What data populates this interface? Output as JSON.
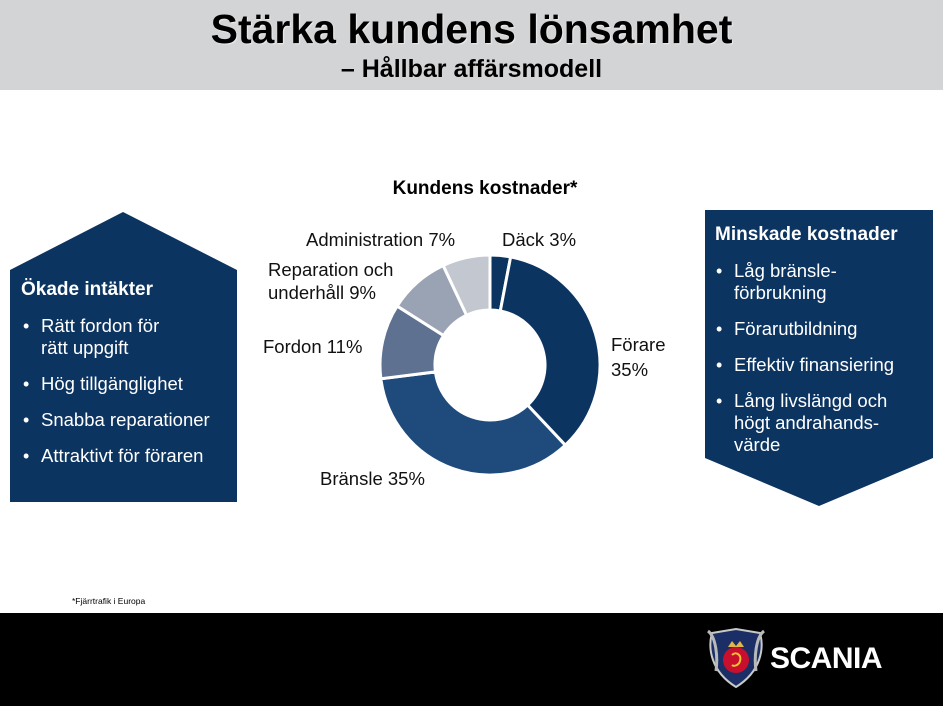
{
  "header": {
    "title": "Stärka kundens lönsamhet",
    "subtitle": "– Hållbar affärsmodell"
  },
  "chart_data": {
    "type": "pie",
    "style": "donut",
    "title": "Kundens kostnader*",
    "slices": [
      {
        "label": "Däck 3%",
        "value": 3,
        "color": "#0c3461"
      },
      {
        "label": "Förare 35%",
        "value": 35,
        "color": "#0c3461"
      },
      {
        "label": "Bränsle 35%",
        "value": 35,
        "color": "#1e4b7c"
      },
      {
        "label": "Fordon 11%",
        "value": 11,
        "color": "#5f7190"
      },
      {
        "label": "Reparation och underhåll 9%",
        "value": 9,
        "color": "#9aa3b4"
      },
      {
        "label": "Administration 7%",
        "value": 7,
        "color": "#c3c7cf"
      }
    ]
  },
  "labels": {
    "dack": "Däck 3%",
    "forare_1": "Förare",
    "forare_2": "35%",
    "bransle": "Bränsle 35%",
    "fordon": "Fordon 11%",
    "reparation_1": "Reparation och",
    "reparation_2": "underhåll 9%",
    "administration": "Administration 7%"
  },
  "left_box": {
    "heading": "Ökade intäkter",
    "items": [
      {
        "line1": "Rätt fordon för",
        "line2": "rätt uppgift"
      },
      {
        "line1": "Hög tillgänglighet",
        "line2": ""
      },
      {
        "line1": "Snabba reparationer",
        "line2": ""
      },
      {
        "line1": "Attraktivt för föraren",
        "line2": ""
      }
    ]
  },
  "right_box": {
    "heading": "Minskade kostnader",
    "items": [
      {
        "line1": "Låg bränsle-",
        "line2": "förbrukning",
        "line3": ""
      },
      {
        "line1": "Förarutbildning",
        "line2": "",
        "line3": ""
      },
      {
        "line1": "Effektiv finansiering",
        "line2": "",
        "line3": ""
      },
      {
        "line1": "Lång livslängd och",
        "line2": "högt andrahands-",
        "line3": "värde"
      }
    ]
  },
  "bullet": "•",
  "footnote": "*Fjärrtrafik i Europa",
  "footer": {
    "brand": "SCANIA",
    "logo_icon": "scania-griffin-logo"
  },
  "colors": {
    "navy": "#0c3461",
    "header_bg": "#d3d4d6",
    "footer_bg": "#000000"
  }
}
